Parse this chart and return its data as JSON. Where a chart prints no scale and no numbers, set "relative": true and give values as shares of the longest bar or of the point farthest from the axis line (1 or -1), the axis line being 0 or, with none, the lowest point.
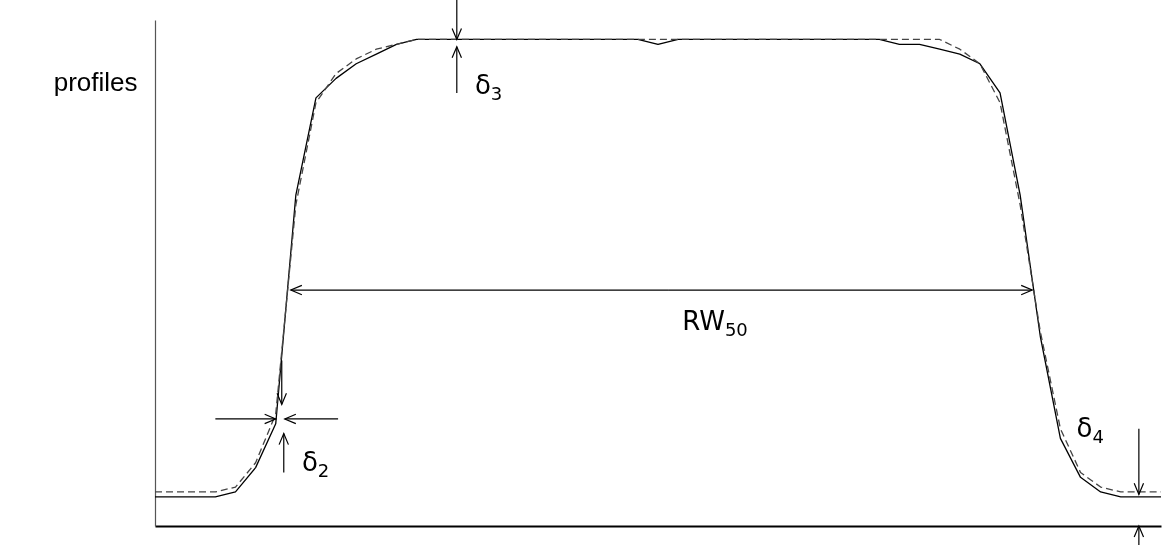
{
  "chart_data": {
    "type": "line",
    "relative": true,
    "ylabel": "profiles",
    "categories": [
      null,
      null,
      null,
      null,
      null,
      null,
      null,
      null,
      null,
      null,
      null,
      null,
      null,
      null,
      null,
      null,
      null,
      null,
      null,
      null,
      null,
      null,
      null,
      null,
      null,
      null,
      null,
      null,
      null,
      null,
      null,
      null,
      null,
      null,
      null,
      null,
      null,
      null,
      null,
      null,
      null,
      null,
      null,
      null,
      null,
      null,
      null,
      null,
      null,
      null,
      null
    ],
    "series": [
      {
        "color": "#000000",
        "line_style": "solid",
        "values": [
          0.06,
          0.06,
          0.06,
          0.06,
          0.07,
          0.12,
          0.21,
          0.68,
          0.88,
          0.92,
          0.95,
          0.97,
          0.99,
          1,
          1,
          1,
          1,
          1,
          1,
          1,
          1,
          1,
          1,
          1,
          1,
          0.99,
          1,
          1,
          1,
          1,
          1,
          1,
          1,
          1,
          1,
          1,
          1,
          0.99,
          0.99,
          0.98,
          0.97,
          0.95,
          0.89,
          0.68,
          0.39,
          0.18,
          0.1,
          0.07,
          0.06,
          0.06,
          0.06
        ]
      },
      {
        "color": "#444444",
        "line_style": "dashed",
        "values": [
          0.07,
          0.07,
          0.07,
          0.07,
          0.08,
          0.13,
          0.23,
          0.66,
          0.87,
          0.93,
          0.96,
          0.98,
          0.99,
          1,
          1,
          1,
          1,
          1,
          1,
          1,
          1,
          1,
          1,
          1,
          1,
          1,
          1,
          1,
          1,
          1,
          1,
          1,
          1,
          1,
          1,
          1,
          1,
          1,
          1,
          1,
          0.98,
          0.95,
          0.87,
          0.66,
          0.4,
          0.2,
          0.11,
          0.08,
          0.07,
          0.07,
          0.07
        ]
      }
    ],
    "annotations": [
      "δ$_{3}$",
      "RW$_{50}$",
      "δ$_{2}$",
      "δ$_{4}$"
    ]
  }
}
